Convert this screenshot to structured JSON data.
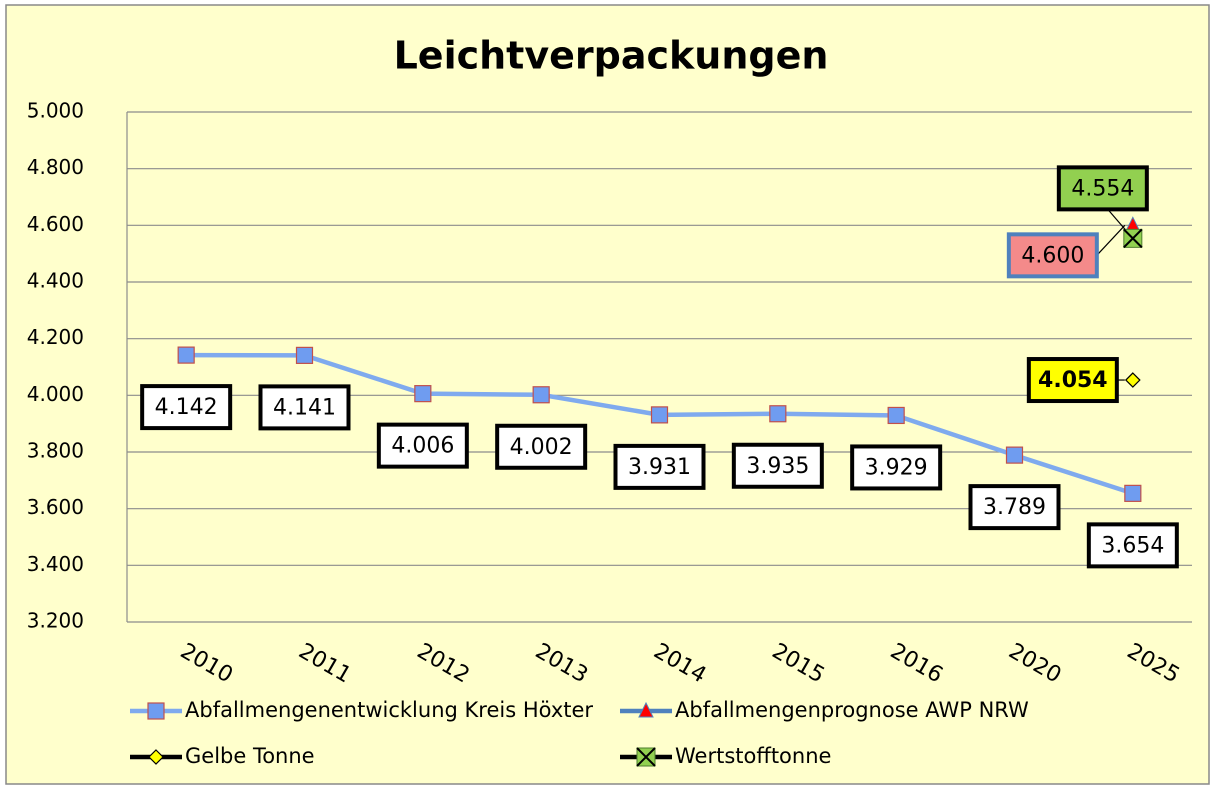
{
  "chart_data": {
    "type": "line",
    "title": "Leichtverpackungen",
    "categories": [
      "2010",
      "2011",
      "2012",
      "2013",
      "2014",
      "2015",
      "2016",
      "2020",
      "2025"
    ],
    "series": [
      {
        "name": "Abfallmengenentwicklung Kreis Höxter",
        "color": "#7faaee",
        "marker_color": "#6f9cf0",
        "marker": "square",
        "values": [
          4142,
          4141,
          4006,
          4002,
          3931,
          3935,
          3929,
          3789,
          3654
        ],
        "value_labels": [
          "4.142",
          "4.141",
          "4.006",
          "4.002",
          "3.931",
          "3.935",
          "3.929",
          "3.789",
          "3.654"
        ]
      },
      {
        "name": "Abfallmengenprognose AWP NRW",
        "color": "#4f81bd",
        "marker_color": "#ff0000",
        "marker": "triangle",
        "label_color": "#f48a8a",
        "values": [
          null,
          null,
          null,
          null,
          null,
          null,
          null,
          null,
          4600
        ],
        "value_labels": [
          null,
          null,
          null,
          null,
          null,
          null,
          null,
          null,
          "4.600"
        ]
      },
      {
        "name": "Gelbe Tonne",
        "color": "#000000",
        "marker_color": "#ffff00",
        "marker": "diamond",
        "label_color": "#ffff00",
        "values": [
          null,
          null,
          null,
          null,
          null,
          null,
          null,
          null,
          4054
        ],
        "value_labels": [
          null,
          null,
          null,
          null,
          null,
          null,
          null,
          null,
          "4.054"
        ]
      },
      {
        "name": "Wertstofftonne",
        "color": "#000000",
        "marker_color": "#92d050",
        "marker": "xsquare",
        "label_color": "#92d050",
        "values": [
          null,
          null,
          null,
          null,
          null,
          null,
          null,
          null,
          4554
        ],
        "value_labels": [
          null,
          null,
          null,
          null,
          null,
          null,
          null,
          null,
          "4.554"
        ]
      }
    ],
    "ylim": [
      3200,
      5000
    ],
    "yticks": [
      {
        "value": 3200,
        "label": "3.200"
      },
      {
        "value": 3400,
        "label": "3.400"
      },
      {
        "value": 3600,
        "label": "3.600"
      },
      {
        "value": 3800,
        "label": "3.800"
      },
      {
        "value": 4000,
        "label": "4.000"
      },
      {
        "value": 4200,
        "label": "4.200"
      },
      {
        "value": 4400,
        "label": "4.400"
      },
      {
        "value": 4600,
        "label": "4.600"
      },
      {
        "value": 4800,
        "label": "4.800"
      },
      {
        "value": 5000,
        "label": "5.000"
      }
    ],
    "grid": true
  }
}
